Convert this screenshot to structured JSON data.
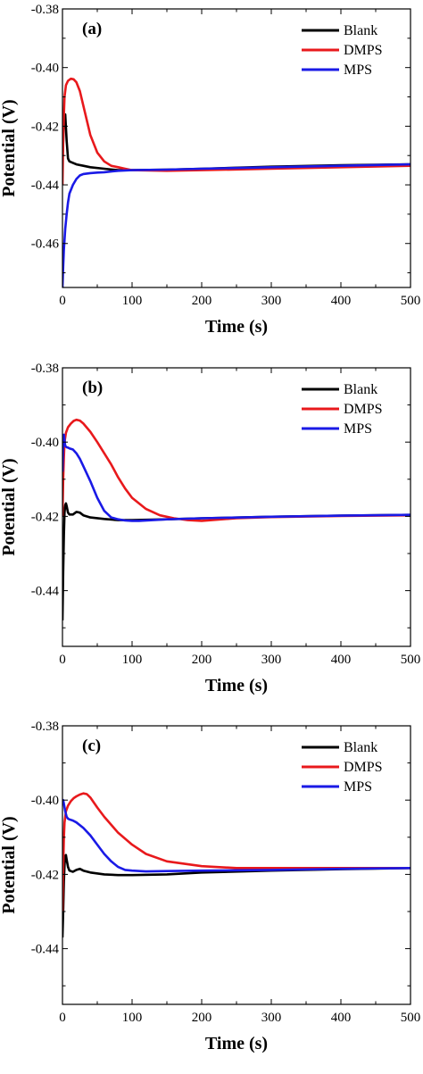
{
  "chart_data": [
    {
      "type": "line",
      "panel_label": "(a)",
      "xlabel": "Time (s)",
      "ylabel": "Potential (V)",
      "xlim": [
        0,
        500
      ],
      "ylim": [
        -0.475,
        -0.38
      ],
      "xticks": [
        0,
        100,
        200,
        300,
        400,
        500
      ],
      "yticks": [
        -0.38,
        -0.4,
        -0.42,
        -0.44,
        -0.46
      ],
      "ytick_labels": [
        "-0.38",
        "-0.40",
        "-0.42",
        "-0.44",
        "-0.46"
      ],
      "legend_position": "top-right",
      "series": [
        {
          "name": "Blank",
          "color": "#000000",
          "x": [
            0,
            2,
            4,
            6,
            8,
            10,
            15,
            20,
            30,
            40,
            60,
            80,
            100,
            150,
            200,
            300,
            400,
            500
          ],
          "y": [
            -0.432,
            -0.418,
            -0.416,
            -0.425,
            -0.431,
            -0.432,
            -0.4325,
            -0.433,
            -0.4335,
            -0.434,
            -0.4345,
            -0.435,
            -0.435,
            -0.4348,
            -0.4345,
            -0.4338,
            -0.4333,
            -0.433
          ]
        },
        {
          "name": "DMPS",
          "color": "#e8191c",
          "x": [
            0,
            1,
            2,
            3,
            5,
            8,
            12,
            16,
            20,
            25,
            30,
            35,
            40,
            50,
            60,
            70,
            80,
            90,
            100,
            150,
            200,
            300,
            400,
            500
          ],
          "y": [
            -0.44,
            -0.425,
            -0.416,
            -0.41,
            -0.406,
            -0.4045,
            -0.4038,
            -0.404,
            -0.405,
            -0.408,
            -0.413,
            -0.418,
            -0.423,
            -0.429,
            -0.432,
            -0.4335,
            -0.434,
            -0.4345,
            -0.435,
            -0.4352,
            -0.435,
            -0.4345,
            -0.434,
            -0.4335
          ]
        },
        {
          "name": "MPS",
          "color": "#1a1ae6",
          "x": [
            0,
            1,
            2,
            4,
            6,
            8,
            10,
            15,
            20,
            25,
            30,
            40,
            50,
            60,
            80,
            100,
            150,
            200,
            300,
            400,
            500
          ],
          "y": [
            -0.475,
            -0.468,
            -0.462,
            -0.455,
            -0.45,
            -0.446,
            -0.443,
            -0.44,
            -0.438,
            -0.4368,
            -0.4363,
            -0.436,
            -0.4358,
            -0.4357,
            -0.4352,
            -0.435,
            -0.4348,
            -0.4345,
            -0.434,
            -0.4335,
            -0.433
          ]
        }
      ]
    },
    {
      "type": "line",
      "panel_label": "(b)",
      "xlabel": "Time (s)",
      "ylabel": "Potential (V)",
      "xlim": [
        0,
        500
      ],
      "ylim": [
        -0.455,
        -0.38
      ],
      "xticks": [
        0,
        100,
        200,
        300,
        400,
        500
      ],
      "yticks": [
        -0.38,
        -0.4,
        -0.42,
        -0.44
      ],
      "ytick_labels": [
        "-0.38",
        "-0.40",
        "-0.42",
        "-0.44"
      ],
      "legend_position": "top-right",
      "series": [
        {
          "name": "Blank",
          "color": "#000000",
          "x": [
            0,
            1,
            2,
            3,
            4,
            5,
            6,
            8,
            10,
            15,
            20,
            25,
            30,
            40,
            60,
            80,
            100,
            150,
            200,
            300,
            400,
            500
          ],
          "y": [
            -0.448,
            -0.435,
            -0.425,
            -0.419,
            -0.417,
            -0.4165,
            -0.4172,
            -0.419,
            -0.4195,
            -0.4195,
            -0.4188,
            -0.419,
            -0.4197,
            -0.4203,
            -0.4207,
            -0.421,
            -0.421,
            -0.4208,
            -0.4205,
            -0.4201,
            -0.4198,
            -0.4196
          ]
        },
        {
          "name": "DMPS",
          "color": "#e8191c",
          "x": [
            0,
            1,
            2,
            3,
            5,
            8,
            12,
            16,
            20,
            25,
            30,
            40,
            50,
            60,
            70,
            80,
            90,
            100,
            120,
            140,
            160,
            180,
            200,
            250,
            300,
            400,
            500
          ],
          "y": [
            -0.42,
            -0.41,
            -0.404,
            -0.4,
            -0.3975,
            -0.396,
            -0.395,
            -0.3943,
            -0.394,
            -0.3942,
            -0.395,
            -0.3972,
            -0.4,
            -0.403,
            -0.406,
            -0.4095,
            -0.4125,
            -0.415,
            -0.418,
            -0.4197,
            -0.4205,
            -0.421,
            -0.4212,
            -0.4205,
            -0.4202,
            -0.4199,
            -0.4197
          ]
        },
        {
          "name": "MPS",
          "color": "#1a1ae6",
          "x": [
            0,
            1,
            2,
            3,
            4,
            6,
            8,
            10,
            15,
            20,
            25,
            30,
            40,
            50,
            60,
            70,
            80,
            90,
            100,
            110,
            150,
            200,
            300,
            400,
            500
          ],
          "y": [
            -0.408,
            -0.4,
            -0.398,
            -0.3995,
            -0.401,
            -0.4014,
            -0.4015,
            -0.4017,
            -0.402,
            -0.403,
            -0.4045,
            -0.4065,
            -0.4105,
            -0.415,
            -0.4185,
            -0.4203,
            -0.4208,
            -0.4211,
            -0.4212,
            -0.4212,
            -0.4208,
            -0.4205,
            -0.4201,
            -0.4198,
            -0.4196
          ]
        }
      ]
    },
    {
      "type": "line",
      "panel_label": "(c)",
      "xlabel": "Time (s)",
      "ylabel": "Potential (V)",
      "xlim": [
        0,
        500
      ],
      "ylim": [
        -0.455,
        -0.38
      ],
      "xticks": [
        0,
        100,
        200,
        300,
        400,
        500
      ],
      "yticks": [
        -0.38,
        -0.4,
        -0.42,
        -0.44
      ],
      "ytick_labels": [
        "-0.38",
        "-0.40",
        "-0.42",
        "-0.44"
      ],
      "legend_position": "top-right",
      "series": [
        {
          "name": "Blank",
          "color": "#000000",
          "x": [
            0,
            1,
            2,
            3,
            4,
            5,
            6,
            8,
            10,
            15,
            20,
            25,
            30,
            40,
            60,
            80,
            100,
            150,
            200,
            300,
            400,
            500
          ],
          "y": [
            -0.437,
            -0.43,
            -0.422,
            -0.4175,
            -0.415,
            -0.4148,
            -0.416,
            -0.418,
            -0.419,
            -0.4193,
            -0.4188,
            -0.4185,
            -0.419,
            -0.4195,
            -0.42,
            -0.4202,
            -0.4202,
            -0.42,
            -0.4195,
            -0.419,
            -0.4186,
            -0.4183
          ]
        },
        {
          "name": "DMPS",
          "color": "#e8191c",
          "x": [
            0,
            1,
            2,
            3,
            5,
            8,
            12,
            16,
            20,
            25,
            30,
            35,
            40,
            50,
            60,
            80,
            100,
            120,
            150,
            200,
            250,
            300,
            400,
            500
          ],
          "y": [
            -0.43,
            -0.418,
            -0.41,
            -0.406,
            -0.403,
            -0.4015,
            -0.4003,
            -0.3995,
            -0.399,
            -0.3985,
            -0.3982,
            -0.3984,
            -0.3993,
            -0.402,
            -0.4045,
            -0.4088,
            -0.412,
            -0.4145,
            -0.4165,
            -0.4178,
            -0.4183,
            -0.4183,
            -0.4183,
            -0.4183
          ]
        },
        {
          "name": "MPS",
          "color": "#1a1ae6",
          "x": [
            0,
            1,
            2,
            4,
            6,
            8,
            10,
            15,
            20,
            30,
            40,
            50,
            60,
            70,
            80,
            90,
            100,
            120,
            150,
            200,
            300,
            400,
            500
          ],
          "y": [
            -0.401,
            -0.4,
            -0.401,
            -0.403,
            -0.4045,
            -0.405,
            -0.4052,
            -0.4055,
            -0.406,
            -0.4075,
            -0.4095,
            -0.412,
            -0.4145,
            -0.4165,
            -0.418,
            -0.4188,
            -0.419,
            -0.4192,
            -0.4191,
            -0.419,
            -0.4188,
            -0.4185,
            -0.4183
          ]
        }
      ]
    }
  ]
}
